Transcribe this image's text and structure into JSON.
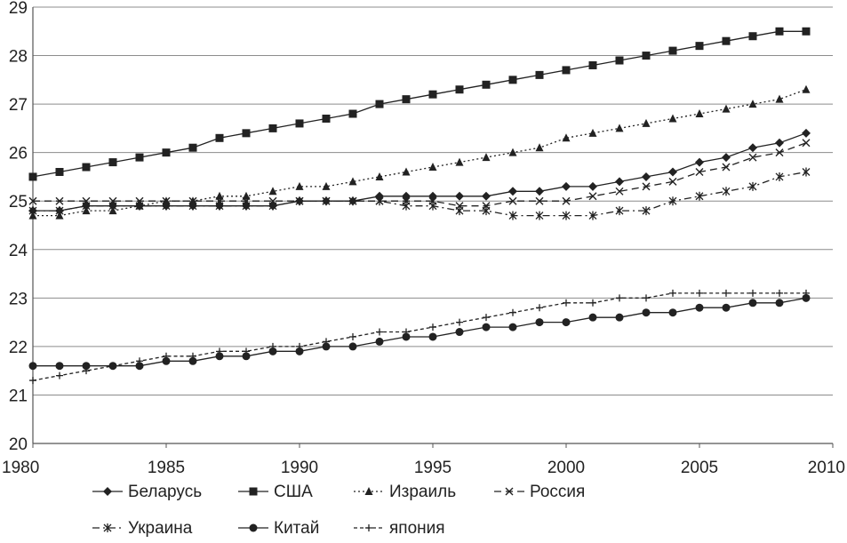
{
  "chart_data": {
    "type": "line",
    "title": "",
    "xlabel": "",
    "ylabel": "",
    "xlim": [
      1980,
      2010
    ],
    "ylim": [
      20,
      29
    ],
    "grid": "horizontal",
    "legend_position": "bottom",
    "x": [
      1980,
      1981,
      1982,
      1983,
      1984,
      1985,
      1986,
      1987,
      1988,
      1989,
      1990,
      1991,
      1992,
      1993,
      1994,
      1995,
      1996,
      1997,
      1998,
      1999,
      2000,
      2001,
      2002,
      2003,
      2004,
      2005,
      2006,
      2007,
      2008,
      2009
    ],
    "x_ticks": [
      "1980",
      "1985",
      "1990",
      "1995",
      "2000",
      "2005",
      "2010"
    ],
    "y_ticks": [
      "20",
      "21",
      "22",
      "23",
      "24",
      "25",
      "26",
      "27",
      "28",
      "29"
    ],
    "series": [
      {
        "name": "Беларусь",
        "marker": "diamond",
        "dash": "solid",
        "values": [
          24.8,
          24.8,
          24.9,
          24.9,
          24.9,
          24.9,
          24.9,
          24.9,
          24.9,
          24.9,
          25.0,
          25.0,
          25.0,
          25.1,
          25.1,
          25.1,
          25.1,
          25.1,
          25.2,
          25.2,
          25.3,
          25.3,
          25.4,
          25.5,
          25.6,
          25.8,
          25.9,
          26.1,
          26.2,
          26.4
        ]
      },
      {
        "name": "США",
        "marker": "square",
        "dash": "solid",
        "values": [
          25.5,
          25.6,
          25.7,
          25.8,
          25.9,
          26.0,
          26.1,
          26.3,
          26.4,
          26.5,
          26.6,
          26.7,
          26.8,
          27.0,
          27.1,
          27.2,
          27.3,
          27.4,
          27.5,
          27.6,
          27.7,
          27.8,
          27.9,
          28.0,
          28.1,
          28.2,
          28.3,
          28.4,
          28.5,
          28.5
        ]
      },
      {
        "name": "Израиль",
        "marker": "triangle",
        "dash": "dotted",
        "values": [
          24.7,
          24.7,
          24.8,
          24.8,
          24.9,
          25.0,
          25.0,
          25.1,
          25.1,
          25.2,
          25.3,
          25.3,
          25.4,
          25.5,
          25.6,
          25.7,
          25.8,
          25.9,
          26.0,
          26.1,
          26.3,
          26.4,
          26.5,
          26.6,
          26.7,
          26.8,
          26.9,
          27.0,
          27.1,
          27.3
        ]
      },
      {
        "name": "Россия",
        "marker": "x",
        "dash": "dashed",
        "values": [
          25.0,
          25.0,
          25.0,
          25.0,
          25.0,
          25.0,
          25.0,
          25.0,
          25.0,
          25.0,
          25.0,
          25.0,
          25.0,
          25.0,
          25.0,
          25.0,
          24.9,
          24.9,
          25.0,
          25.0,
          25.0,
          25.1,
          25.2,
          25.3,
          25.4,
          25.6,
          25.7,
          25.9,
          26.0,
          26.2
        ]
      },
      {
        "name": "Украина",
        "marker": "asterisk",
        "dash": "dashdot",
        "values": [
          24.8,
          24.8,
          24.9,
          24.9,
          24.9,
          24.9,
          24.9,
          24.9,
          24.9,
          24.9,
          25.0,
          25.0,
          25.0,
          25.0,
          24.9,
          24.9,
          24.8,
          24.8,
          24.7,
          24.7,
          24.7,
          24.7,
          24.8,
          24.8,
          25.0,
          25.1,
          25.2,
          25.3,
          25.5,
          25.6
        ]
      },
      {
        "name": "Китай",
        "marker": "circle",
        "dash": "solid",
        "values": [
          21.6,
          21.6,
          21.6,
          21.6,
          21.6,
          21.7,
          21.7,
          21.8,
          21.8,
          21.9,
          21.9,
          22.0,
          22.0,
          22.1,
          22.2,
          22.2,
          22.3,
          22.4,
          22.4,
          22.5,
          22.5,
          22.6,
          22.6,
          22.7,
          22.7,
          22.8,
          22.8,
          22.9,
          22.9,
          23.0
        ]
      },
      {
        "name": "япония",
        "marker": "plus",
        "dash": "finedash",
        "values": [
          21.3,
          21.4,
          21.5,
          21.6,
          21.7,
          21.8,
          21.8,
          21.9,
          21.9,
          22.0,
          22.0,
          22.1,
          22.2,
          22.3,
          22.3,
          22.4,
          22.5,
          22.6,
          22.7,
          22.8,
          22.9,
          22.9,
          23.0,
          23.0,
          23.1,
          23.1,
          23.1,
          23.1,
          23.1,
          23.1
        ]
      }
    ]
  },
  "colors": {
    "line": "#222222",
    "grid": "#8c8c8c",
    "axis": "#555555",
    "background": "#ffffff"
  }
}
